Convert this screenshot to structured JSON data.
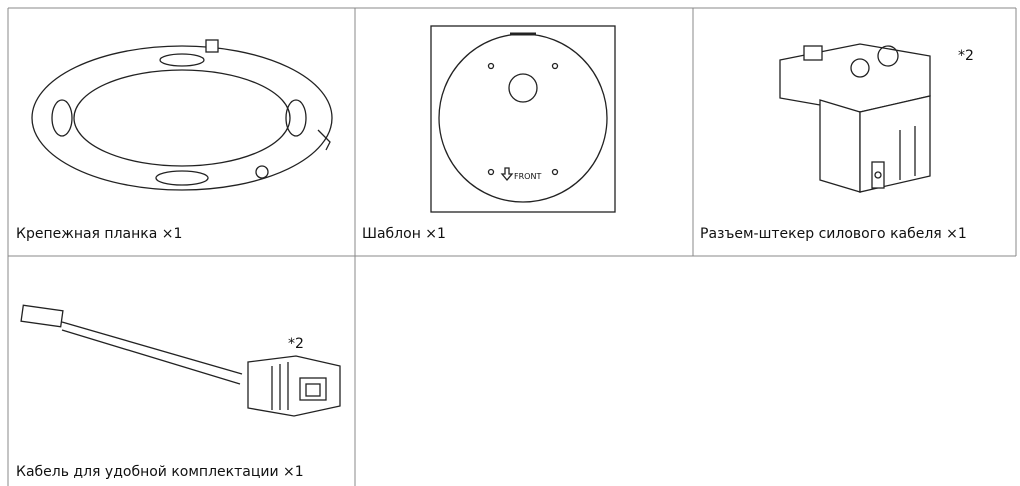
{
  "items": [
    {
      "caption": "Крепежная планка ×1"
    },
    {
      "caption": "Шаблон ×1",
      "template_label": "FRONT"
    },
    {
      "caption": "Разъем-штекер силового кабеля ×1",
      "note": "*2"
    },
    {
      "caption": "Кабель для удобной комплектации ×1",
      "note": "*2"
    }
  ]
}
